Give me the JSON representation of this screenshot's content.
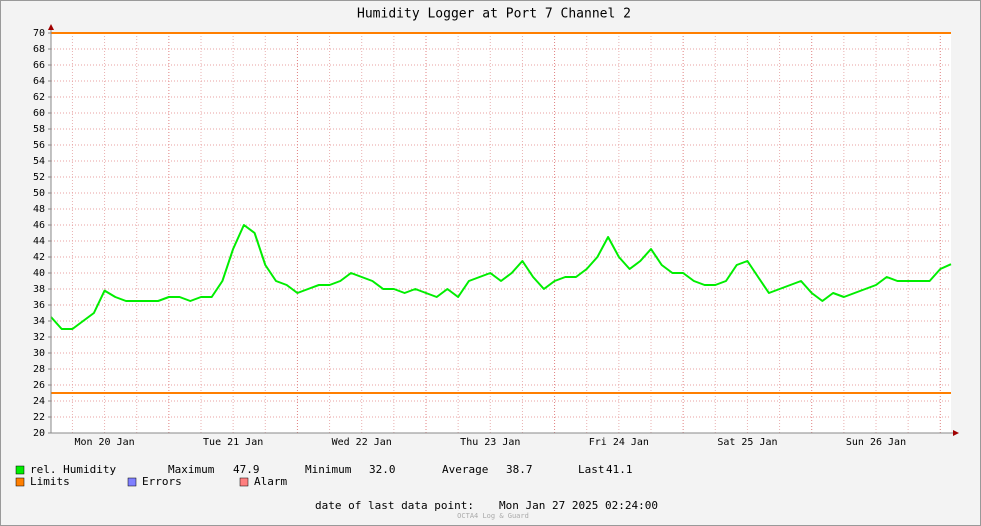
{
  "chart_data": {
    "type": "line",
    "title": "Humidity Logger at Port 7 Channel 2",
    "categories": [
      null,
      null,
      null,
      null,
      null,
      "Mon 20 Jan",
      null,
      null,
      null,
      null,
      null,
      null,
      null,
      null,
      null,
      null,
      null,
      "Tue 21 Jan",
      null,
      null,
      null,
      null,
      null,
      null,
      null,
      null,
      null,
      null,
      null,
      "Wed 22 Jan",
      null,
      null,
      null,
      null,
      null,
      null,
      null,
      null,
      null,
      null,
      null,
      "Thu 23 Jan",
      null,
      null,
      null,
      null,
      null,
      null,
      null,
      null,
      null,
      null,
      null,
      "Fri 24 Jan",
      null,
      null,
      null,
      null,
      null,
      null,
      null,
      null,
      null,
      null,
      null,
      "Sat 25 Jan",
      null,
      null,
      null,
      null,
      null,
      null,
      null,
      null,
      null,
      null,
      null,
      "Sun 26 Jan",
      null,
      null,
      null,
      null,
      null,
      null,
      null
    ],
    "series": [
      {
        "name": "rel. Humidity",
        "color": "#00ee00",
        "values": [
          34.5,
          33,
          33,
          34,
          35,
          37.8,
          37,
          36.5,
          36.5,
          36.5,
          36.5,
          37,
          37,
          36.5,
          37,
          37,
          39,
          43,
          46,
          45,
          41,
          39,
          38.5,
          37.5,
          38,
          38.5,
          38.5,
          39,
          40,
          39.5,
          39,
          38,
          38,
          37.5,
          38,
          37.5,
          37,
          38,
          37,
          39,
          39.5,
          40,
          39,
          40,
          41.5,
          39.5,
          38,
          39,
          39.5,
          39.5,
          40.5,
          42,
          44.5,
          42,
          40.5,
          41.5,
          43,
          41,
          40,
          40,
          39,
          38.5,
          38.5,
          39,
          41,
          41.5,
          39.5,
          37.5,
          38,
          38.5,
          39,
          37.5,
          36.5,
          37.5,
          37,
          37.5,
          38,
          38.5,
          39.5,
          39,
          39,
          39,
          39,
          40.5,
          41.1
        ]
      }
    ],
    "limits": {
      "name": "Limits",
      "color": "#ff7f00",
      "values": [
        70,
        25
      ]
    },
    "legend_extra": [
      {
        "name": "Errors",
        "color": "#7f7fff"
      },
      {
        "name": "Alarm",
        "color": "#ff7f7f"
      }
    ],
    "stats": [
      {
        "label": "Maximum",
        "value": "47.9"
      },
      {
        "label": "Minimum",
        "value": "32.0"
      },
      {
        "label": "Average",
        "value": "38.7"
      },
      {
        "label": "Last",
        "value": "41.1"
      }
    ],
    "footer": {
      "label": "date of last data point:",
      "value": "Mon Jan 27 2025 02:24:00"
    },
    "credit": "OCTA4 Log & Guard",
    "ylim": [
      20,
      70
    ],
    "yticks": [
      20,
      22,
      24,
      26,
      28,
      30,
      32,
      34,
      36,
      38,
      40,
      42,
      44,
      46,
      48,
      50,
      52,
      54,
      56,
      58,
      60,
      62,
      64,
      66,
      68,
      70
    ],
    "grid": true
  }
}
